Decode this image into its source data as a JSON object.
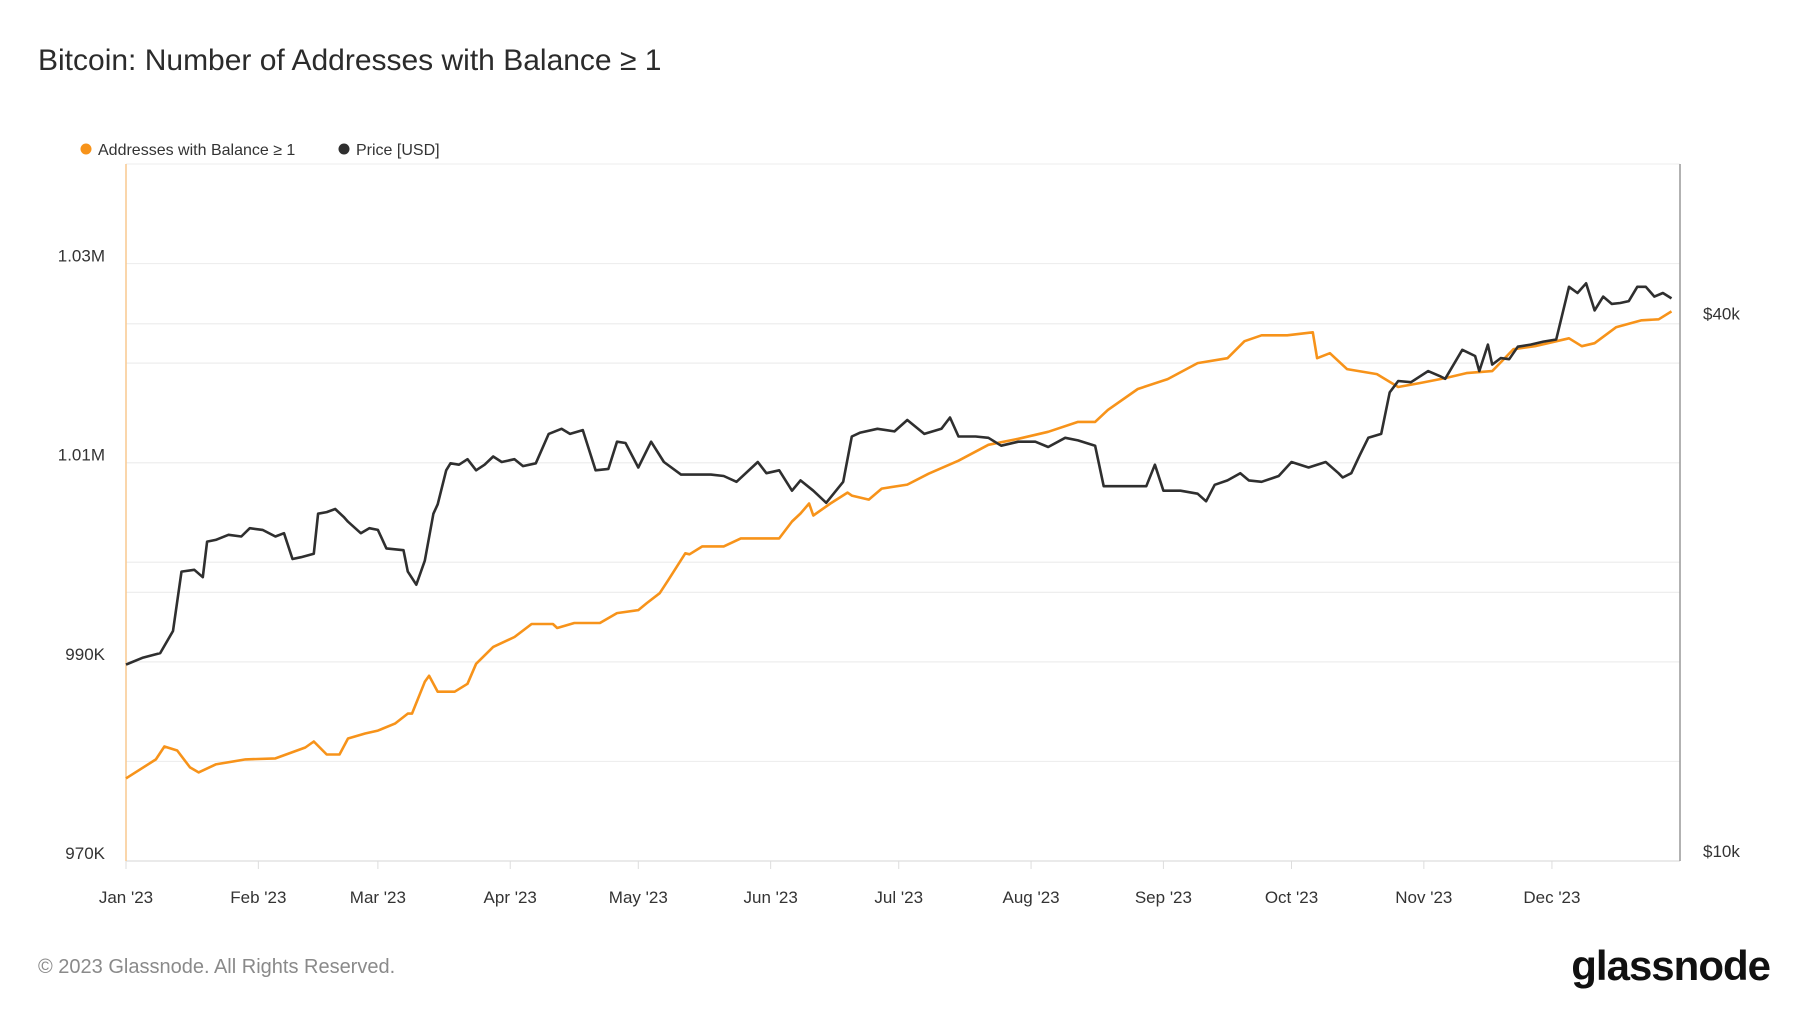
{
  "title": "Bitcoin: Number of Addresses with Balance ≥ 1",
  "footer": "© 2023 Glassnode. All Rights Reserved.",
  "logo": "glassnode",
  "chart_data": {
    "type": "line",
    "title": "Bitcoin: Number of Addresses with Balance ≥ 1",
    "legend_position": "top-left",
    "grid": true,
    "x_axis": {
      "range": [
        "2023-01-01",
        "2023-12-31"
      ],
      "ticks": [
        {
          "date": "2023-01-01",
          "label": "Jan '23"
        },
        {
          "date": "2023-02-01",
          "label": "Feb '23"
        },
        {
          "date": "2023-03-01",
          "label": "Mar '23"
        },
        {
          "date": "2023-04-01",
          "label": "Apr '23"
        },
        {
          "date": "2023-05-01",
          "label": "May '23"
        },
        {
          "date": "2023-06-01",
          "label": "Jun '23"
        },
        {
          "date": "2023-07-01",
          "label": "Jul '23"
        },
        {
          "date": "2023-08-01",
          "label": "Aug '23"
        },
        {
          "date": "2023-09-01",
          "label": "Sep '23"
        },
        {
          "date": "2023-10-01",
          "label": "Oct '23"
        },
        {
          "date": "2023-11-01",
          "label": "Nov '23"
        },
        {
          "date": "2023-12-01",
          "label": "Dec '23"
        }
      ]
    },
    "y_left": {
      "scale": "linear",
      "range": [
        970000,
        1040000
      ],
      "gridlines": [
        980000,
        990000,
        1000000,
        1010000,
        1020000,
        1030000
      ],
      "ticks": [
        {
          "value": 970000,
          "label": "970K"
        },
        {
          "value": 990000,
          "label": "990K"
        },
        {
          "value": 1010000,
          "label": "1.01M"
        },
        {
          "value": 1030000,
          "label": "1.03M"
        }
      ]
    },
    "y_right": {
      "scale": "log",
      "range": [
        10000,
        60400
      ],
      "gridlines": [
        20000,
        40000
      ],
      "ticks": [
        {
          "value": 10000,
          "label": "$10k"
        },
        {
          "value": 40000,
          "label": "$40k"
        }
      ]
    },
    "series": [
      {
        "name": "Addresses with Balance ≥ 1",
        "color": "#f7931a",
        "axis": "left",
        "points": [
          [
            "2023-01-01",
            978300
          ],
          [
            "2023-01-08",
            980200
          ],
          [
            "2023-01-10",
            981500
          ],
          [
            "2023-01-13",
            981100
          ],
          [
            "2023-01-16",
            979400
          ],
          [
            "2023-01-18",
            978900
          ],
          [
            "2023-01-22",
            979700
          ],
          [
            "2023-01-29",
            980200
          ],
          [
            "2023-02-05",
            980300
          ],
          [
            "2023-02-12",
            981400
          ],
          [
            "2023-02-14",
            982000
          ],
          [
            "2023-02-17",
            980700
          ],
          [
            "2023-02-20",
            980700
          ],
          [
            "2023-02-22",
            982300
          ],
          [
            "2023-02-26",
            982800
          ],
          [
            "2023-03-01",
            983100
          ],
          [
            "2023-03-05",
            983800
          ],
          [
            "2023-03-08",
            984800
          ],
          [
            "2023-03-09",
            984800
          ],
          [
            "2023-03-12",
            988000
          ],
          [
            "2023-03-13",
            988600
          ],
          [
            "2023-03-15",
            987000
          ],
          [
            "2023-03-19",
            987000
          ],
          [
            "2023-03-22",
            987800
          ],
          [
            "2023-03-24",
            989800
          ],
          [
            "2023-03-28",
            991500
          ],
          [
            "2023-04-02",
            992500
          ],
          [
            "2023-04-06",
            993800
          ],
          [
            "2023-04-11",
            993800
          ],
          [
            "2023-04-12",
            993400
          ],
          [
            "2023-04-16",
            993900
          ],
          [
            "2023-04-22",
            993900
          ],
          [
            "2023-04-26",
            994900
          ],
          [
            "2023-05-01",
            995200
          ],
          [
            "2023-05-03",
            995900
          ],
          [
            "2023-05-06",
            996900
          ],
          [
            "2023-05-08",
            998200
          ],
          [
            "2023-05-12",
            1000900
          ],
          [
            "2023-05-13",
            1000800
          ],
          [
            "2023-05-16",
            1001600
          ],
          [
            "2023-05-21",
            1001600
          ],
          [
            "2023-05-25",
            1002400
          ],
          [
            "2023-05-28",
            1002400
          ],
          [
            "2023-06-03",
            1002400
          ],
          [
            "2023-06-06",
            1004100
          ],
          [
            "2023-06-08",
            1004900
          ],
          [
            "2023-06-10",
            1005900
          ],
          [
            "2023-06-11",
            1004700
          ],
          [
            "2023-06-15",
            1005900
          ],
          [
            "2023-06-19",
            1007000
          ],
          [
            "2023-06-20",
            1006700
          ],
          [
            "2023-06-24",
            1006300
          ],
          [
            "2023-06-27",
            1007400
          ],
          [
            "2023-07-03",
            1007800
          ],
          [
            "2023-07-08",
            1008900
          ],
          [
            "2023-07-15",
            1010200
          ],
          [
            "2023-07-22",
            1011800
          ],
          [
            "2023-07-29",
            1012400
          ],
          [
            "2023-08-05",
            1013100
          ],
          [
            "2023-08-12",
            1014100
          ],
          [
            "2023-08-16",
            1014100
          ],
          [
            "2023-08-19",
            1015300
          ],
          [
            "2023-08-26",
            1017400
          ],
          [
            "2023-09-02",
            1018400
          ],
          [
            "2023-09-09",
            1020000
          ],
          [
            "2023-09-16",
            1020500
          ],
          [
            "2023-09-20",
            1022200
          ],
          [
            "2023-09-24",
            1022800
          ],
          [
            "2023-09-30",
            1022800
          ],
          [
            "2023-10-06",
            1023100
          ],
          [
            "2023-10-07",
            1020500
          ],
          [
            "2023-10-10",
            1021000
          ],
          [
            "2023-10-14",
            1019400
          ],
          [
            "2023-10-21",
            1018900
          ],
          [
            "2023-10-26",
            1017600
          ],
          [
            "2023-10-31",
            1018000
          ],
          [
            "2023-11-06",
            1018500
          ],
          [
            "2023-11-11",
            1019000
          ],
          [
            "2023-11-17",
            1019200
          ],
          [
            "2023-11-22",
            1021400
          ],
          [
            "2023-11-27",
            1021700
          ],
          [
            "2023-12-05",
            1022500
          ],
          [
            "2023-12-08",
            1021700
          ],
          [
            "2023-12-11",
            1022000
          ],
          [
            "2023-12-16",
            1023600
          ],
          [
            "2023-12-22",
            1024300
          ],
          [
            "2023-12-26",
            1024400
          ],
          [
            "2023-12-29",
            1025200
          ]
        ]
      },
      {
        "name": "Price [USD]",
        "color": "#2f2f2f",
        "axis": "right",
        "points": [
          [
            "2023-01-01",
            16600
          ],
          [
            "2023-01-05",
            16900
          ],
          [
            "2023-01-09",
            17100
          ],
          [
            "2023-01-12",
            18100
          ],
          [
            "2023-01-14",
            21100
          ],
          [
            "2023-01-17",
            21200
          ],
          [
            "2023-01-19",
            20800
          ],
          [
            "2023-01-20",
            22800
          ],
          [
            "2023-01-22",
            22900
          ],
          [
            "2023-01-25",
            23200
          ],
          [
            "2023-01-28",
            23100
          ],
          [
            "2023-01-30",
            23600
          ],
          [
            "2023-02-02",
            23500
          ],
          [
            "2023-02-05",
            23100
          ],
          [
            "2023-02-07",
            23300
          ],
          [
            "2023-02-09",
            21800
          ],
          [
            "2023-02-11",
            21900
          ],
          [
            "2023-02-14",
            22100
          ],
          [
            "2023-02-15",
            24500
          ],
          [
            "2023-02-17",
            24600
          ],
          [
            "2023-02-19",
            24800
          ],
          [
            "2023-02-21",
            24300
          ],
          [
            "2023-02-22",
            24000
          ],
          [
            "2023-02-25",
            23300
          ],
          [
            "2023-02-27",
            23600
          ],
          [
            "2023-03-01",
            23500
          ],
          [
            "2023-03-03",
            22400
          ],
          [
            "2023-03-07",
            22300
          ],
          [
            "2023-03-08",
            21100
          ],
          [
            "2023-03-10",
            20400
          ],
          [
            "2023-03-12",
            21700
          ],
          [
            "2023-03-14",
            24500
          ],
          [
            "2023-03-15",
            25100
          ],
          [
            "2023-03-17",
            27400
          ],
          [
            "2023-03-18",
            27900
          ],
          [
            "2023-03-20",
            27800
          ],
          [
            "2023-03-22",
            28200
          ],
          [
            "2023-03-24",
            27400
          ],
          [
            "2023-03-26",
            27800
          ],
          [
            "2023-03-28",
            28400
          ],
          [
            "2023-03-30",
            28000
          ],
          [
            "2023-04-02",
            28200
          ],
          [
            "2023-04-04",
            27700
          ],
          [
            "2023-04-07",
            27900
          ],
          [
            "2023-04-10",
            30100
          ],
          [
            "2023-04-13",
            30500
          ],
          [
            "2023-04-15",
            30100
          ],
          [
            "2023-04-18",
            30400
          ],
          [
            "2023-04-21",
            27400
          ],
          [
            "2023-04-24",
            27500
          ],
          [
            "2023-04-26",
            29500
          ],
          [
            "2023-04-28",
            29400
          ],
          [
            "2023-05-01",
            27600
          ],
          [
            "2023-05-04",
            29500
          ],
          [
            "2023-05-07",
            28000
          ],
          [
            "2023-05-11",
            27100
          ],
          [
            "2023-05-15",
            27100
          ],
          [
            "2023-05-18",
            27100
          ],
          [
            "2023-05-21",
            27000
          ],
          [
            "2023-05-24",
            26600
          ],
          [
            "2023-05-29",
            28000
          ],
          [
            "2023-05-31",
            27200
          ],
          [
            "2023-06-03",
            27400
          ],
          [
            "2023-06-06",
            26000
          ],
          [
            "2023-06-08",
            26700
          ],
          [
            "2023-06-11",
            26000
          ],
          [
            "2023-06-14",
            25200
          ],
          [
            "2023-06-18",
            26600
          ],
          [
            "2023-06-20",
            29900
          ],
          [
            "2023-06-22",
            30200
          ],
          [
            "2023-06-26",
            30500
          ],
          [
            "2023-06-30",
            30300
          ],
          [
            "2023-07-03",
            31200
          ],
          [
            "2023-07-07",
            30100
          ],
          [
            "2023-07-11",
            30500
          ],
          [
            "2023-07-13",
            31400
          ],
          [
            "2023-07-15",
            29900
          ],
          [
            "2023-07-19",
            29900
          ],
          [
            "2023-07-22",
            29800
          ],
          [
            "2023-07-25",
            29200
          ],
          [
            "2023-07-29",
            29500
          ],
          [
            "2023-08-02",
            29500
          ],
          [
            "2023-08-05",
            29100
          ],
          [
            "2023-08-09",
            29800
          ],
          [
            "2023-08-12",
            29600
          ],
          [
            "2023-08-16",
            29200
          ],
          [
            "2023-08-18",
            26300
          ],
          [
            "2023-08-21",
            26300
          ],
          [
            "2023-08-25",
            26300
          ],
          [
            "2023-08-28",
            26300
          ],
          [
            "2023-08-30",
            27800
          ],
          [
            "2023-09-01",
            26000
          ],
          [
            "2023-09-05",
            26000
          ],
          [
            "2023-09-09",
            25800
          ],
          [
            "2023-09-11",
            25300
          ],
          [
            "2023-09-13",
            26400
          ],
          [
            "2023-09-16",
            26700
          ],
          [
            "2023-09-19",
            27200
          ],
          [
            "2023-09-21",
            26700
          ],
          [
            "2023-09-24",
            26600
          ],
          [
            "2023-09-28",
            27000
          ],
          [
            "2023-10-01",
            28000
          ],
          [
            "2023-10-05",
            27600
          ],
          [
            "2023-10-09",
            28000
          ],
          [
            "2023-10-12",
            27200
          ],
          [
            "2023-10-13",
            26900
          ],
          [
            "2023-10-15",
            27200
          ],
          [
            "2023-10-17",
            28500
          ],
          [
            "2023-10-19",
            29800
          ],
          [
            "2023-10-22",
            30100
          ],
          [
            "2023-10-24",
            33500
          ],
          [
            "2023-10-26",
            34500
          ],
          [
            "2023-10-29",
            34400
          ],
          [
            "2023-11-02",
            35400
          ],
          [
            "2023-11-05",
            34900
          ],
          [
            "2023-11-06",
            34700
          ],
          [
            "2023-11-10",
            37400
          ],
          [
            "2023-11-13",
            36800
          ],
          [
            "2023-11-14",
            35400
          ],
          [
            "2023-11-16",
            37900
          ],
          [
            "2023-11-17",
            36000
          ],
          [
            "2023-11-19",
            36600
          ],
          [
            "2023-11-21",
            36500
          ],
          [
            "2023-11-23",
            37700
          ],
          [
            "2023-11-26",
            37900
          ],
          [
            "2023-11-29",
            38200
          ],
          [
            "2023-12-02",
            38400
          ],
          [
            "2023-12-03",
            40200
          ],
          [
            "2023-12-05",
            44000
          ],
          [
            "2023-12-07",
            43300
          ],
          [
            "2023-12-09",
            44400
          ],
          [
            "2023-12-11",
            41400
          ],
          [
            "2023-12-13",
            42900
          ],
          [
            "2023-12-15",
            42100
          ],
          [
            "2023-12-17",
            42200
          ],
          [
            "2023-12-19",
            42400
          ],
          [
            "2023-12-21",
            44000
          ],
          [
            "2023-12-23",
            44000
          ],
          [
            "2023-12-25",
            42900
          ],
          [
            "2023-12-27",
            43300
          ],
          [
            "2023-12-29",
            42700
          ]
        ]
      }
    ]
  }
}
